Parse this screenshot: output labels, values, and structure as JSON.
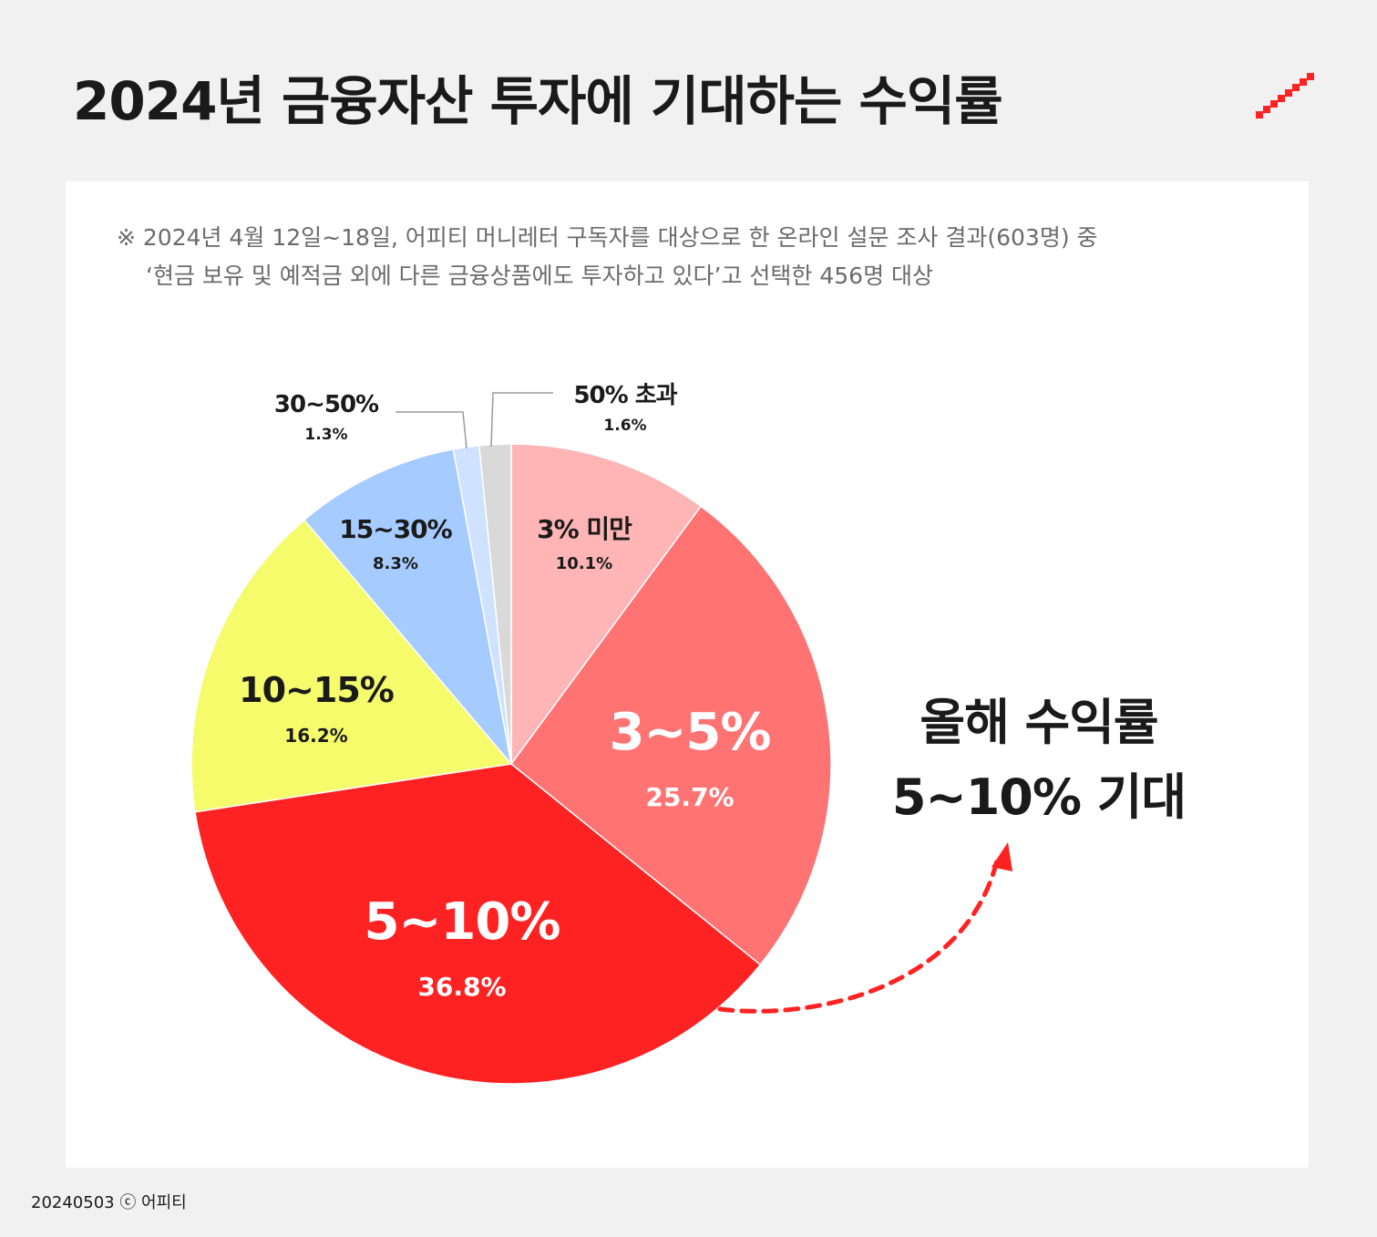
{
  "title": "2024년 금융자산 투자에 기대하는 수익률",
  "note": {
    "line1": "※ 2024년 4월 12일~18일, 어피티 머니레터 구독자를 대상으로 한 온라인 설문 조사 결과(603명) 중",
    "line2": "‘현금 보유 및 예적금 외에 다른 금융상품에도 투자하고 있다’고 선택한 456명 대상"
  },
  "callout": {
    "line1": "올해 수익률",
    "line2": "5~10% 기대"
  },
  "footer": "20240503 ⓒ 어피티",
  "colors": {
    "accent": "#ff2222",
    "background": "#f1f1f1",
    "card": "#ffffff"
  },
  "chart_data": {
    "type": "pie",
    "start_angle_deg": 0,
    "direction": "clockwise",
    "slices": [
      {
        "label": "3% 미만",
        "value": 10.1,
        "value_label": "10.1%",
        "color": "#ffb5b5"
      },
      {
        "label": "3~5%",
        "value": 25.7,
        "value_label": "25.7%",
        "color": "#ff7373"
      },
      {
        "label": "5~10%",
        "value": 36.8,
        "value_label": "36.8%",
        "color": "#ff2222"
      },
      {
        "label": "10~15%",
        "value": 16.2,
        "value_label": "16.2%",
        "color": "#f5fb6a"
      },
      {
        "label": "15~30%",
        "value": 8.3,
        "value_label": "8.3%",
        "color": "#a6cbff"
      },
      {
        "label": "30~50%",
        "value": 1.3,
        "value_label": "1.3%",
        "color": "#cfe2ff"
      },
      {
        "label": "50% 초과",
        "value": 1.6,
        "value_label": "1.6%",
        "color": "#d9d9d9"
      }
    ]
  }
}
